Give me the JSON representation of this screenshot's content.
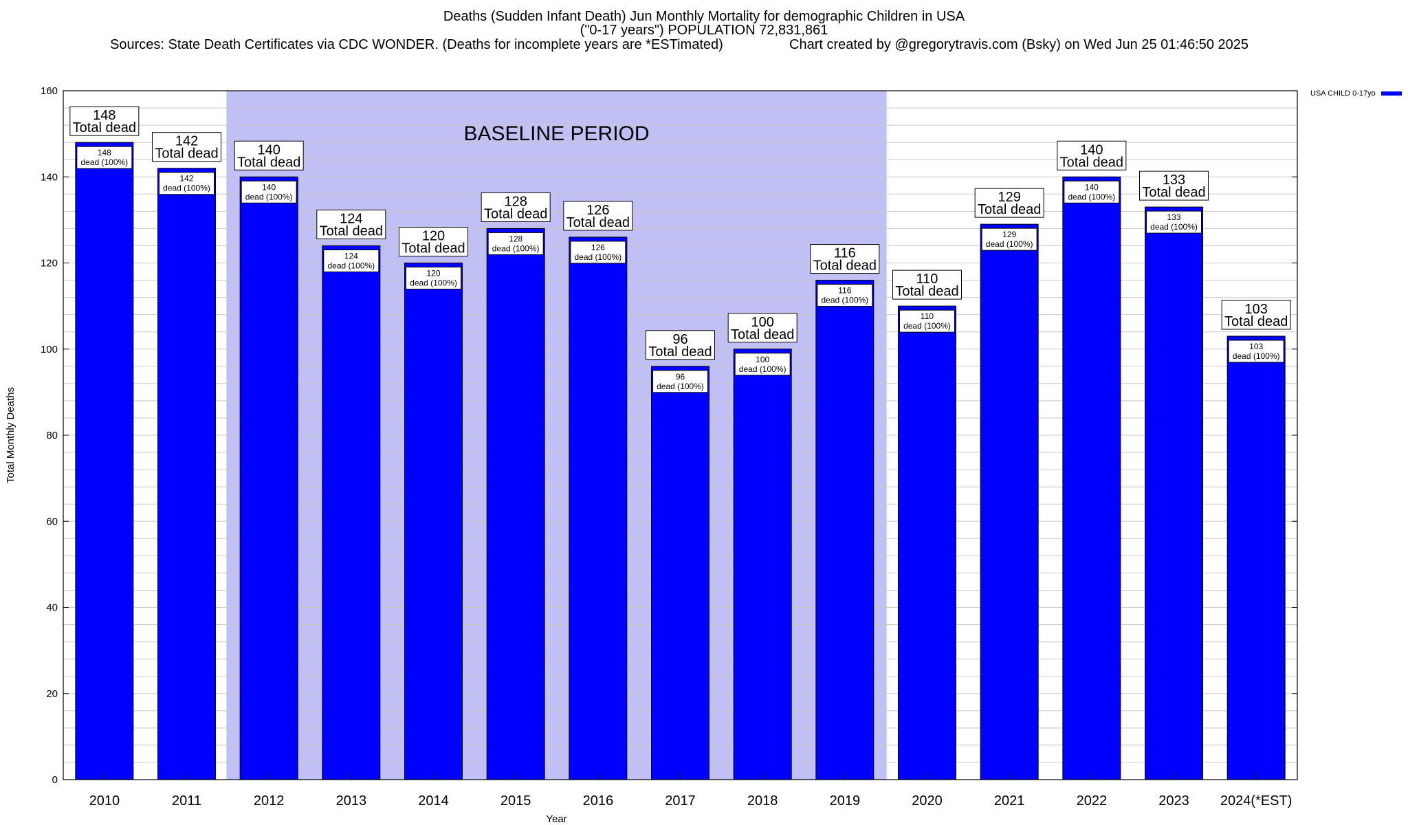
{
  "header": {
    "title_line1": "Deaths (Sudden Infant Death) Jun Monthly Mortality for demographic Children in USA",
    "title_line2": "(\"0-17 years\") POPULATION 72,831,861",
    "sources": "Sources: State Death Certificates via CDC WONDER. (Deaths for incomplete years are *ESTimated)",
    "credit": "Chart created by @gregorytravis.com (Bsky) on Wed Jun 25 01:46:50 2025"
  },
  "legend": {
    "series_label": "USA CHILD 0-17yo"
  },
  "colors": {
    "bar": "#0000ff",
    "baseline": "#c0c0f5",
    "label_border": "#000000",
    "grid": "#c8c8c8"
  },
  "chart_data": {
    "type": "bar",
    "xlabel": "Year",
    "ylabel": "Total Monthly Deaths",
    "ylim": [
      0,
      160
    ],
    "yticks": [
      0,
      20,
      40,
      60,
      80,
      100,
      120,
      140,
      160
    ],
    "grid": true,
    "legend_position": "top-right",
    "categories": [
      "2010",
      "2011",
      "2012",
      "2013",
      "2014",
      "2015",
      "2016",
      "2017",
      "2018",
      "2019",
      "2020",
      "2021",
      "2022",
      "2023",
      "2024(*EST)"
    ],
    "series": [
      {
        "name": "USA CHILD 0-17yo",
        "values": [
          148,
          142,
          140,
          124,
          120,
          128,
          126,
          96,
          100,
          116,
          110,
          129,
          140,
          133,
          103
        ]
      }
    ],
    "top_label_suffix": "Total dead",
    "inner_label_suffix": "dead (100%)",
    "baseline_period": {
      "label": "BASELINE PERIOD",
      "from": "2012",
      "to": "2019"
    }
  }
}
